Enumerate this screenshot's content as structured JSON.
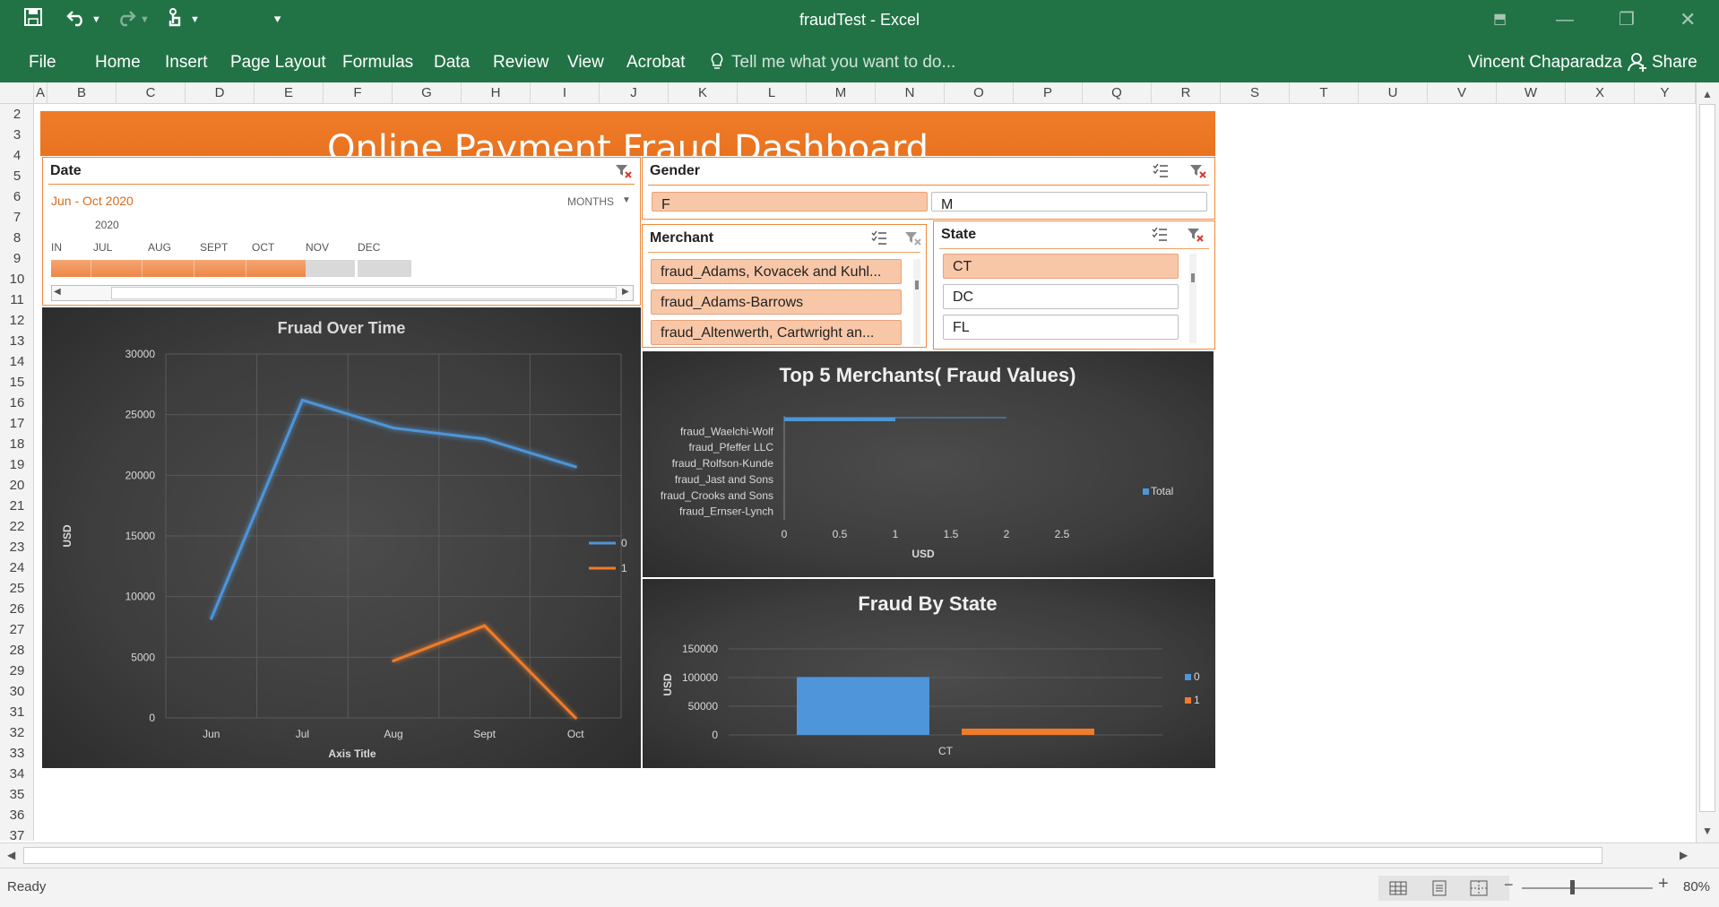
{
  "window": {
    "title": "fraudTest  - Excel",
    "user": "Vincent Chaparadza",
    "share": "Share"
  },
  "ribbon": {
    "tabs": [
      "File",
      "Home",
      "Insert",
      "Page Layout",
      "Formulas",
      "Data",
      "Review",
      "View",
      "Acrobat"
    ],
    "tell_me": "Tell me what you want to do..."
  },
  "columns": [
    "A",
    "B",
    "C",
    "D",
    "E",
    "F",
    "G",
    "H",
    "I",
    "J",
    "K",
    "L",
    "M",
    "N",
    "O",
    "P",
    "Q",
    "R",
    "S",
    "T",
    "U",
    "V",
    "W",
    "X",
    "Y"
  ],
  "rows": [
    "2",
    "3",
    "4",
    "5",
    "6",
    "7",
    "8",
    "9",
    "10",
    "11",
    "12",
    "13",
    "14",
    "15",
    "16",
    "17",
    "18",
    "19",
    "20",
    "21",
    "22",
    "23",
    "24",
    "25",
    "26",
    "27",
    "28",
    "29",
    "30",
    "31",
    "32",
    "33",
    "34",
    "35",
    "36",
    "37"
  ],
  "dashboard_title": "Online Payment Fraud Dashboard",
  "timeline": {
    "header": "Date",
    "range": "Jun - Oct 2020",
    "level": "MONTHS",
    "year": "2020",
    "months": [
      "IN",
      "JUL",
      "AUG",
      "SEPT",
      "OCT",
      "NOV",
      "DEC"
    ]
  },
  "gender": {
    "header": "Gender",
    "items": [
      {
        "label": "F",
        "selected": true
      },
      {
        "label": "M",
        "selected": false
      }
    ]
  },
  "merchant": {
    "header": "Merchant",
    "items": [
      {
        "label": "fraud_Adams, Kovacek and Kuhl...",
        "selected": true
      },
      {
        "label": "fraud_Adams-Barrows",
        "selected": true
      },
      {
        "label": "fraud_Altenwerth, Cartwright an...",
        "selected": true
      }
    ]
  },
  "state": {
    "header": "State",
    "items": [
      {
        "label": "CT",
        "selected": true
      },
      {
        "label": "DC",
        "selected": false
      },
      {
        "label": "FL",
        "selected": false
      }
    ]
  },
  "chart_data": [
    {
      "type": "line",
      "title": "Fruad Over Time",
      "xlabel": "Axis Title",
      "ylabel": "USD",
      "categories": [
        "Jun",
        "Jul",
        "Aug",
        "Sept",
        "Oct"
      ],
      "ylim": [
        0,
        30000
      ],
      "yticks": [
        "0",
        "5000",
        "10000",
        "15000",
        "20000",
        "25000",
        "30000"
      ],
      "series": [
        {
          "name": "0",
          "color": "#4e95d9",
          "values": [
            8200,
            26200,
            23900,
            23000,
            20700
          ]
        },
        {
          "name": "1",
          "color": "#f07b2a",
          "values": [
            null,
            null,
            4700,
            7600,
            0
          ]
        }
      ],
      "legend": "right",
      "grid": true
    },
    {
      "type": "bar",
      "orientation": "horizontal",
      "title": "Top 5 Merchants( Fraud Values)",
      "xlabel": "USD",
      "categories": [
        "fraud_Waelchi-Wolf",
        "fraud_Pfeffer LLC",
        "fraud_Rolfson-Kunde",
        "fraud_Jast and Sons",
        "fraud_Crooks and Sons",
        "fraud_Ernser-Lynch"
      ],
      "xlim": [
        0,
        2.5
      ],
      "xticks": [
        "0",
        "0.5",
        "1",
        "1.5",
        "2",
        "2.5"
      ],
      "series": [
        {
          "name": "Total",
          "color": "#4e95d9",
          "values": [
            1,
            0,
            0,
            0,
            0,
            0
          ]
        }
      ],
      "legend": "right"
    },
    {
      "type": "bar",
      "title": "Fraud By State",
      "ylabel": "USD",
      "categories": [
        "CT"
      ],
      "ylim": [
        0,
        150000
      ],
      "yticks": [
        "0",
        "50000",
        "100000",
        "150000"
      ],
      "series": [
        {
          "name": "0",
          "color": "#4e95d9",
          "values": [
            101000
          ]
        },
        {
          "name": "1",
          "color": "#f07b2a",
          "values": [
            11000
          ]
        }
      ],
      "legend": "right"
    }
  ],
  "status": {
    "ready": "Ready",
    "zoom": "80%"
  }
}
